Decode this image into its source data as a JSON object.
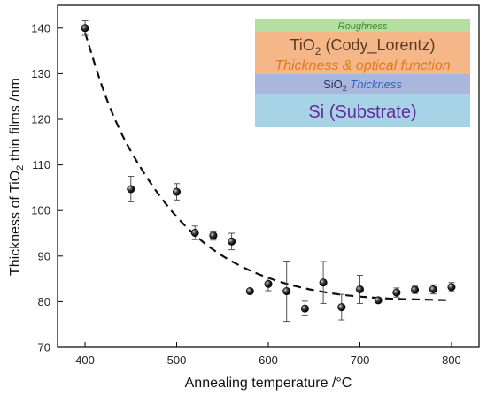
{
  "chart_data": {
    "type": "scatter",
    "xlabel": "Annealing temperature /°C",
    "ylabel_parts": [
      "Thickness of TiO",
      "2",
      " thin films /nm"
    ],
    "xlim": [
      370,
      830
    ],
    "ylim": [
      70,
      145
    ],
    "x_ticks": [
      400,
      500,
      600,
      700,
      800
    ],
    "y_ticks": [
      70,
      80,
      90,
      100,
      110,
      120,
      130,
      140
    ],
    "grid": false,
    "points": [
      {
        "x": 400,
        "y": 140.0,
        "err": 1.6
      },
      {
        "x": 450,
        "y": 104.7,
        "err": 2.8
      },
      {
        "x": 500,
        "y": 104.1,
        "err": 1.8
      },
      {
        "x": 520,
        "y": 95.1,
        "err": 1.5
      },
      {
        "x": 540,
        "y": 94.5,
        "err": 1.0
      },
      {
        "x": 560,
        "y": 93.2,
        "err": 1.8
      },
      {
        "x": 580,
        "y": 82.3,
        "err": 0
      },
      {
        "x": 600,
        "y": 83.9,
        "err": 1.5
      },
      {
        "x": 620,
        "y": 82.3,
        "err": 6.6
      },
      {
        "x": 640,
        "y": 78.5,
        "err": 1.6
      },
      {
        "x": 660,
        "y": 84.2,
        "err": 4.6
      },
      {
        "x": 680,
        "y": 78.8,
        "err": 2.8
      },
      {
        "x": 700,
        "y": 82.7,
        "err": 3.1
      },
      {
        "x": 720,
        "y": 80.3,
        "err": 0.5
      },
      {
        "x": 740,
        "y": 82.0,
        "err": 1.0
      },
      {
        "x": 760,
        "y": 82.6,
        "err": 0.8
      },
      {
        "x": 780,
        "y": 82.7,
        "err": 1.0
      },
      {
        "x": 800,
        "y": 83.2,
        "err": 1.0
      }
    ],
    "fit_curve": {
      "style": "dashed",
      "x": [
        400,
        420,
        440,
        460,
        480,
        500,
        520,
        540,
        560,
        580,
        600,
        620,
        640,
        660,
        680,
        700,
        720,
        740,
        760,
        780,
        800
      ],
      "y": [
        139.0,
        126.0,
        116.5,
        109.5,
        103.5,
        98.5,
        94.5,
        91.3,
        88.8,
        86.8,
        85.2,
        83.9,
        82.9,
        82.1,
        81.5,
        81.1,
        80.8,
        80.6,
        80.5,
        80.4,
        80.3
      ]
    },
    "inset": {
      "layers": [
        {
          "key": "roughness",
          "color": "#b5dea0",
          "parts": [
            {
              "text": "Roughness",
              "italic": true,
              "color": "#3a8a2e"
            }
          ]
        },
        {
          "key": "tio2",
          "color": "#f5b788",
          "parts": [
            {
              "text": "TiO",
              "color": "#5a3a22"
            },
            {
              "text": "2",
              "sub": true,
              "color": "#5a3a22"
            },
            {
              "text": " (Cody_Lorentz)",
              "color": "#5a3a22"
            }
          ]
        },
        {
          "key": "tio2-sub",
          "color": "#f5b788",
          "parts": [
            {
              "text": "Thickness & optical function",
              "italic": true,
              "color": "#e07a1f"
            }
          ]
        },
        {
          "key": "sio2",
          "color": "#a9b7dc",
          "parts": [
            {
              "text": "SiO",
              "color": "#2a2f66"
            },
            {
              "text": "2",
              "sub": true,
              "color": "#2a2f66"
            },
            {
              "text": " ",
              "color": "#2a2f66"
            },
            {
              "text": "Thickness",
              "italic": true,
              "color": "#2d63c8"
            }
          ]
        },
        {
          "key": "si",
          "color": "#a6d3e6",
          "parts": [
            {
              "text": "Si (Substrate)",
              "color": "#6a2aa0"
            }
          ]
        }
      ]
    }
  }
}
